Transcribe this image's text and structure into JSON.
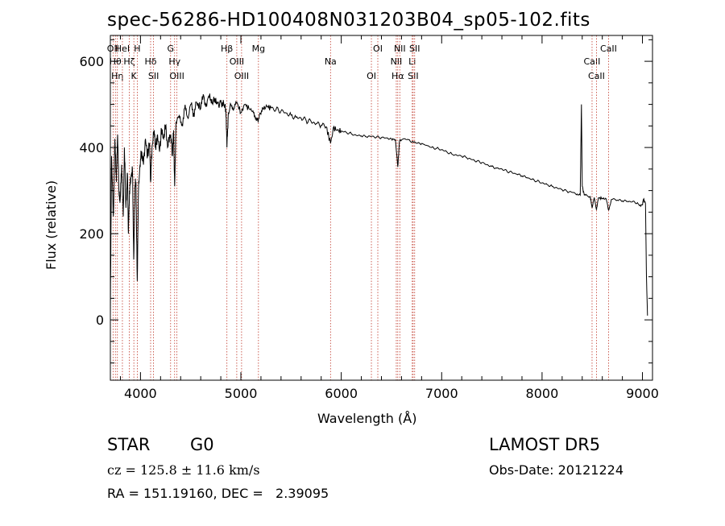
{
  "chart_data": {
    "type": "line",
    "title": "spec-56286-HD100408N031203B04_sp05-102.fits",
    "xlabel": "Wavelength (Å)",
    "ylabel": "Flux (relative)",
    "xlim": [
      3700,
      9100
    ],
    "ylim": [
      -140,
      660
    ],
    "x_ticks": [
      4000,
      5000,
      6000,
      7000,
      8000,
      9000
    ],
    "y_ticks": [
      0,
      200,
      400,
      600
    ],
    "grid": false,
    "series": [
      {
        "color": "#000000",
        "points": [
          [
            3700,
            10
          ],
          [
            3712,
            380
          ],
          [
            3730,
            240
          ],
          [
            3745,
            420
          ],
          [
            3760,
            320
          ],
          [
            3772,
            430
          ],
          [
            3785,
            300
          ],
          [
            3798,
            280
          ],
          [
            3812,
            360
          ],
          [
            3828,
            240
          ],
          [
            3840,
            400
          ],
          [
            3855,
            260
          ],
          [
            3870,
            340
          ],
          [
            3880,
            200
          ],
          [
            3890,
            300
          ],
          [
            3905,
            330
          ],
          [
            3920,
            350
          ],
          [
            3933,
            140
          ],
          [
            3945,
            310
          ],
          [
            3955,
            320
          ],
          [
            3968,
            90
          ],
          [
            3980,
            300
          ],
          [
            3995,
            360
          ],
          [
            4010,
            390
          ],
          [
            4030,
            360
          ],
          [
            4050,
            420
          ],
          [
            4070,
            380
          ],
          [
            4090,
            410
          ],
          [
            4101,
            320
          ],
          [
            4115,
            400
          ],
          [
            4135,
            440
          ],
          [
            4150,
            400
          ],
          [
            4170,
            430
          ],
          [
            4190,
            390
          ],
          [
            4210,
            440
          ],
          [
            4230,
            420
          ],
          [
            4250,
            450
          ],
          [
            4270,
            400
          ],
          [
            4290,
            430
          ],
          [
            4308,
            420
          ],
          [
            4318,
            380
          ],
          [
            4330,
            440
          ],
          [
            4340,
            310
          ],
          [
            4355,
            460
          ],
          [
            4380,
            470
          ],
          [
            4410,
            450
          ],
          [
            4440,
            490
          ],
          [
            4470,
            470
          ],
          [
            4500,
            500
          ],
          [
            4530,
            480
          ],
          [
            4560,
            505
          ],
          [
            4600,
            490
          ],
          [
            4630,
            520
          ],
          [
            4660,
            495
          ],
          [
            4690,
            525
          ],
          [
            4720,
            500
          ],
          [
            4750,
            515
          ],
          [
            4780,
            495
          ],
          [
            4800,
            510
          ],
          [
            4830,
            500
          ],
          [
            4850,
            490
          ],
          [
            4861,
            400
          ],
          [
            4875,
            480
          ],
          [
            4900,
            500
          ],
          [
            4930,
            490
          ],
          [
            4960,
            505
          ],
          [
            5000,
            480
          ],
          [
            5040,
            500
          ],
          [
            5080,
            490
          ],
          [
            5120,
            485
          ],
          [
            5150,
            470
          ],
          [
            5172,
            460
          ],
          [
            5190,
            480
          ],
          [
            5220,
            490
          ],
          [
            5260,
            495
          ],
          [
            5300,
            492
          ],
          [
            5350,
            488
          ],
          [
            5400,
            485
          ],
          [
            5450,
            480
          ],
          [
            5500,
            475
          ],
          [
            5550,
            470
          ],
          [
            5600,
            468
          ],
          [
            5650,
            463
          ],
          [
            5700,
            460
          ],
          [
            5750,
            455
          ],
          [
            5800,
            452
          ],
          [
            5850,
            448
          ],
          [
            5893,
            410
          ],
          [
            5920,
            446
          ],
          [
            5960,
            440
          ],
          [
            6000,
            438
          ],
          [
            6050,
            435
          ],
          [
            6100,
            432
          ],
          [
            6150,
            428
          ],
          [
            6200,
            427
          ],
          [
            6250,
            425
          ],
          [
            6300,
            426
          ],
          [
            6350,
            424
          ],
          [
            6400,
            423
          ],
          [
            6450,
            422
          ],
          [
            6500,
            420
          ],
          [
            6540,
            418
          ],
          [
            6563,
            355
          ],
          [
            6580,
            415
          ],
          [
            6620,
            420
          ],
          [
            6670,
            418
          ],
          [
            6720,
            412
          ],
          [
            6780,
            410
          ],
          [
            6850,
            405
          ],
          [
            6900,
            400
          ],
          [
            6950,
            398
          ],
          [
            7000,
            395
          ],
          [
            7050,
            390
          ],
          [
            7100,
            385
          ],
          [
            7150,
            382
          ],
          [
            7200,
            380
          ],
          [
            7250,
            376
          ],
          [
            7300,
            372
          ],
          [
            7350,
            368
          ],
          [
            7400,
            365
          ],
          [
            7450,
            360
          ],
          [
            7500,
            356
          ],
          [
            7550,
            352
          ],
          [
            7600,
            350
          ],
          [
            7650,
            345
          ],
          [
            7700,
            342
          ],
          [
            7750,
            338
          ],
          [
            7800,
            334
          ],
          [
            7850,
            330
          ],
          [
            7900,
            326
          ],
          [
            7950,
            322
          ],
          [
            8000,
            318
          ],
          [
            8050,
            314
          ],
          [
            8100,
            310
          ],
          [
            8150,
            306
          ],
          [
            8200,
            302
          ],
          [
            8250,
            298
          ],
          [
            8300,
            296
          ],
          [
            8350,
            292
          ],
          [
            8380,
            290
          ],
          [
            8392,
            500
          ],
          [
            8400,
            310
          ],
          [
            8420,
            290
          ],
          [
            8450,
            288
          ],
          [
            8480,
            286
          ],
          [
            8498,
            260
          ],
          [
            8520,
            284
          ],
          [
            8542,
            255
          ],
          [
            8560,
            283
          ],
          [
            8600,
            282
          ],
          [
            8640,
            280
          ],
          [
            8662,
            255
          ],
          [
            8690,
            279
          ],
          [
            8750,
            278
          ],
          [
            8800,
            276
          ],
          [
            8850,
            275
          ],
          [
            8900,
            274
          ],
          [
            8950,
            272
          ],
          [
            8980,
            265
          ],
          [
            9000,
            268
          ],
          [
            9010,
            280
          ],
          [
            9030,
            270
          ],
          [
            9040,
            100
          ],
          [
            9050,
            10
          ]
        ]
      }
    ],
    "lines": [
      {
        "x": 3727,
        "labels": [
          "OII"
        ]
      },
      {
        "x": 3750,
        "labels": [
          "Hθ"
        ]
      },
      {
        "x": 3770,
        "labels": [
          "Hη"
        ]
      },
      {
        "x": 3820,
        "labels": [
          "HeI"
        ]
      },
      {
        "x": 3889,
        "labels": [
          "Hζ"
        ]
      },
      {
        "x": 3934,
        "labels": [
          "K"
        ]
      },
      {
        "x": 3968,
        "labels": [
          "H"
        ]
      },
      {
        "x": 4101,
        "labels": [
          "Hδ"
        ]
      },
      {
        "x": 4130,
        "labels": [
          "SII"
        ]
      },
      {
        "x": 4300,
        "labels": [
          "G"
        ]
      },
      {
        "x": 4340,
        "labels": [
          "Hγ"
        ]
      },
      {
        "x": 4363,
        "labels": [
          "OIII"
        ]
      },
      {
        "x": 4861,
        "labels": [
          "Hβ"
        ]
      },
      {
        "x": 4959,
        "labels": [
          "OIII"
        ]
      },
      {
        "x": 5007,
        "labels": [
          "OIII"
        ]
      },
      {
        "x": 5175,
        "labels": [
          "Mg"
        ]
      },
      {
        "x": 5893,
        "labels": [
          "Na"
        ]
      },
      {
        "x": 6300,
        "labels": [
          "OI"
        ]
      },
      {
        "x": 6364,
        "labels": [
          "OI"
        ]
      },
      {
        "x": 6548,
        "labels": [
          "NII"
        ]
      },
      {
        "x": 6563,
        "labels": [
          "Hα"
        ]
      },
      {
        "x": 6583,
        "labels": [
          "NII"
        ]
      },
      {
        "x": 6707,
        "labels": [
          "Li"
        ]
      },
      {
        "x": 6716,
        "labels": [
          "SII"
        ]
      },
      {
        "x": 6731,
        "labels": [
          "SII"
        ]
      },
      {
        "x": 8498,
        "labels": [
          "CaII"
        ]
      },
      {
        "x": 8542,
        "labels": [
          "CaII"
        ]
      },
      {
        "x": 8662,
        "labels": [
          "CaII"
        ]
      }
    ]
  },
  "info": {
    "class": "STAR",
    "subclass": "G0",
    "survey": "LAMOST DR5",
    "cz": "cz = 125.8 ± 11.6 km/s",
    "obs_date": "Obs-Date: 20121224",
    "coords": "RA = 151.19160, DEC =   2.39095"
  }
}
